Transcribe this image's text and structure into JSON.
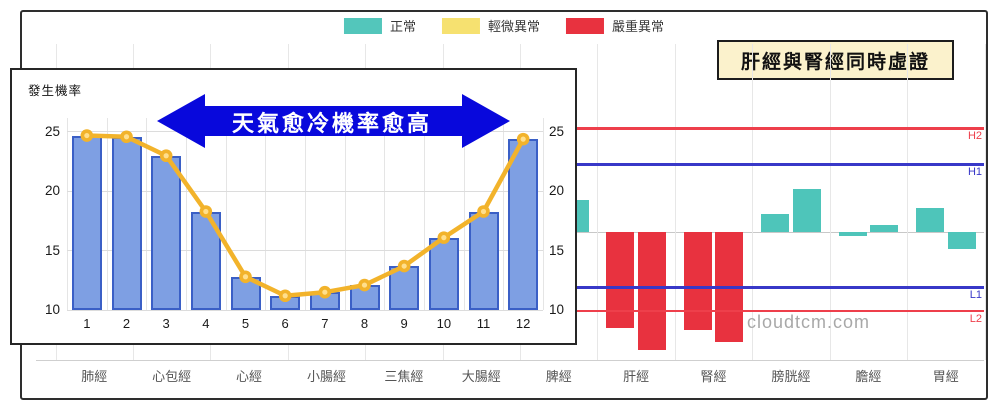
{
  "legend": {
    "items": [
      {
        "label": "正常",
        "status": "normal",
        "color": "#53c6bb"
      },
      {
        "label": "輕微異常",
        "status": "mild",
        "color": "#f6e170"
      },
      {
        "label": "嚴重異常",
        "status": "severe",
        "color": "#e8323f"
      }
    ]
  },
  "note_box": {
    "text": "肝經與腎經同時虛證",
    "bg": "#fbf2cc"
  },
  "watermark": "cloudtcm.com",
  "chart_data": [
    {
      "id": "meridian-bar-chart",
      "type": "bar",
      "title": "",
      "baseline_value": 16.6,
      "ylim": [
        6,
        26
      ],
      "status_colors": {
        "normal": "#4ec5ba",
        "mild": "#f6e170",
        "severe": "#e8323f"
      },
      "groups": [
        {
          "label": "肺經",
          "bars": []
        },
        {
          "label": "心包經",
          "bars": []
        },
        {
          "label": "心經",
          "bars": []
        },
        {
          "label": "小腸經",
          "bars": []
        },
        {
          "label": "三焦經",
          "bars": []
        },
        {
          "label": "大腸經",
          "bars": []
        },
        {
          "label": "脾經",
          "bars": [
            {
              "side": 2,
              "value": 19.3,
              "status": "normal"
            }
          ]
        },
        {
          "label": "肝經",
          "bars": [
            {
              "side": 1,
              "value": 8.5,
              "status": "severe"
            },
            {
              "side": 2,
              "value": 6.6,
              "status": "severe"
            }
          ]
        },
        {
          "label": "腎經",
          "bars": [
            {
              "side": 1,
              "value": 8.3,
              "status": "severe"
            },
            {
              "side": 2,
              "value": 7.3,
              "status": "severe"
            }
          ]
        },
        {
          "label": "膀胱經",
          "bars": [
            {
              "side": 1,
              "value": 18.1,
              "status": "normal"
            },
            {
              "side": 2,
              "value": 20.2,
              "status": "normal"
            }
          ]
        },
        {
          "label": "膽經",
          "bars": [
            {
              "side": 1,
              "value": 16.2,
              "status": "normal"
            },
            {
              "side": 2,
              "value": 17.2,
              "status": "normal"
            }
          ]
        },
        {
          "label": "胃經",
          "bars": [
            {
              "side": 1,
              "value": 18.6,
              "status": "normal"
            },
            {
              "side": 2,
              "value": 15.1,
              "status": "normal"
            }
          ]
        }
      ],
      "reference_lines": [
        {
          "label": "H2",
          "value": 25.3,
          "color": "#ee3f4b",
          "thickness": 2.5
        },
        {
          "label": "H1",
          "value": 22.3,
          "color": "#3838c8",
          "thickness": 3
        },
        {
          "label": "L1",
          "value": 11.9,
          "color": "#3838c8",
          "thickness": 3
        },
        {
          "label": "L2",
          "value": 9.9,
          "color": "#ee3f4b",
          "thickness": 2.5
        }
      ]
    },
    {
      "id": "probability-inset-chart",
      "type": "bar+line",
      "ylabel": "發生機率",
      "categories": [
        "1",
        "2",
        "3",
        "4",
        "5",
        "6",
        "7",
        "8",
        "9",
        "10",
        "11",
        "12"
      ],
      "values": [
        24.7,
        24.6,
        23.0,
        18.3,
        12.8,
        11.2,
        11.5,
        12.1,
        13.7,
        16.1,
        18.3,
        24.4
      ],
      "yticks": [
        25,
        20,
        15,
        10
      ],
      "ylim": [
        10,
        25
      ],
      "annotation": "天氣愈冷機率愈高",
      "bar_color": "#7e9fe3",
      "bar_border": "#3a5fc6",
      "line_color": "#f2b32b",
      "marker_center_color": "#ffdf8c",
      "annotation_bg": "#0808dc"
    }
  ]
}
